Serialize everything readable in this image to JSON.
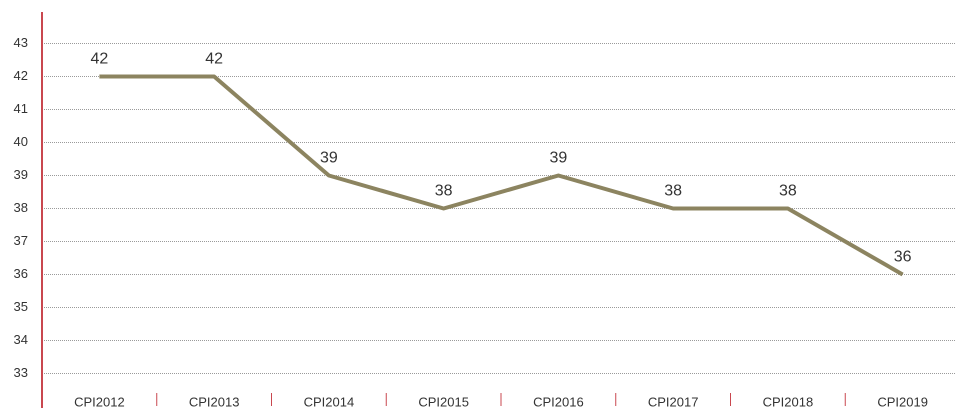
{
  "chart_data": {
    "type": "line",
    "categories": [
      "CPI2012",
      "CPI2013",
      "CPI2014",
      "CPI2015",
      "CPI2016",
      "CPI2017",
      "CPI2018",
      "CPI2019"
    ],
    "values": [
      42,
      42,
      39,
      38,
      39,
      38,
      38,
      36
    ],
    "color": "#8c8460",
    "ylim": [
      32.5,
      43.5
    ],
    "yticks": [
      33,
      34,
      35,
      36,
      37,
      38,
      39,
      40,
      41,
      42,
      43
    ],
    "grid": true
  }
}
